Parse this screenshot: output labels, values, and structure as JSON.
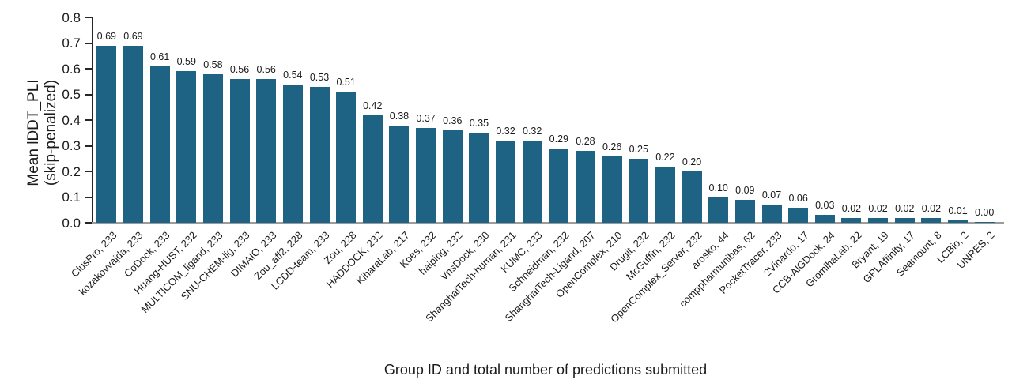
{
  "chart_data": {
    "type": "bar",
    "title": "",
    "xlabel": "Group ID and total number of predictions submitted",
    "ylabel_line1": "Mean lDDT_PLI",
    "ylabel_line2": "(skip-penalized)",
    "ylim": [
      0.0,
      0.8
    ],
    "yticks": [
      0.0,
      0.1,
      0.2,
      0.3,
      0.4,
      0.5,
      0.6,
      0.7,
      0.8
    ],
    "grid": false,
    "legend": "none",
    "bar_color": "#1e6284",
    "axis_spine_color": "#262626",
    "baseline_color": "#9c9c9c",
    "text_color": "#1a1a1a",
    "value_label_decimals": 2,
    "categories": [
      "ClusPro, 233",
      "kozakovvajda, 233",
      "CoDock, 233",
      "Huang-HUST, 232",
      "MULTICOM_ligand, 233",
      "SNU-CHEM-lig, 233",
      "DIMAIO, 233",
      "Zou_aff2, 228",
      "LCDD-team, 233",
      "Zou, 228",
      "HADDOCK, 232",
      "KiharaLab, 217",
      "Koes, 232",
      "haiping, 232",
      "VnsDock, 230",
      "ShanghaiTech-human, 231",
      "KUMC, 233",
      "Schneidman, 232",
      "ShanghaiTech-Ligand, 207",
      "OpenComplex, 210",
      "Drugit, 232",
      "McGuffin, 232",
      "OpenComplex_Server, 232",
      "arosko, 44",
      "comppharmunibas, 62",
      "PocketTracer, 233",
      "2Vinardo, 17",
      "CCB-AlGDock, 24",
      "GromihaLab, 22",
      "Bryant, 19",
      "GPLAffinity, 17",
      "Seamount, 8",
      "LCBio, 2",
      "UNRES, 2"
    ],
    "values": [
      0.69,
      0.69,
      0.61,
      0.59,
      0.58,
      0.56,
      0.56,
      0.54,
      0.53,
      0.51,
      0.42,
      0.38,
      0.37,
      0.36,
      0.35,
      0.32,
      0.32,
      0.29,
      0.28,
      0.26,
      0.25,
      0.22,
      0.2,
      0.1,
      0.09,
      0.07,
      0.06,
      0.03,
      0.02,
      0.02,
      0.02,
      0.02,
      0.01,
      0.0
    ]
  }
}
